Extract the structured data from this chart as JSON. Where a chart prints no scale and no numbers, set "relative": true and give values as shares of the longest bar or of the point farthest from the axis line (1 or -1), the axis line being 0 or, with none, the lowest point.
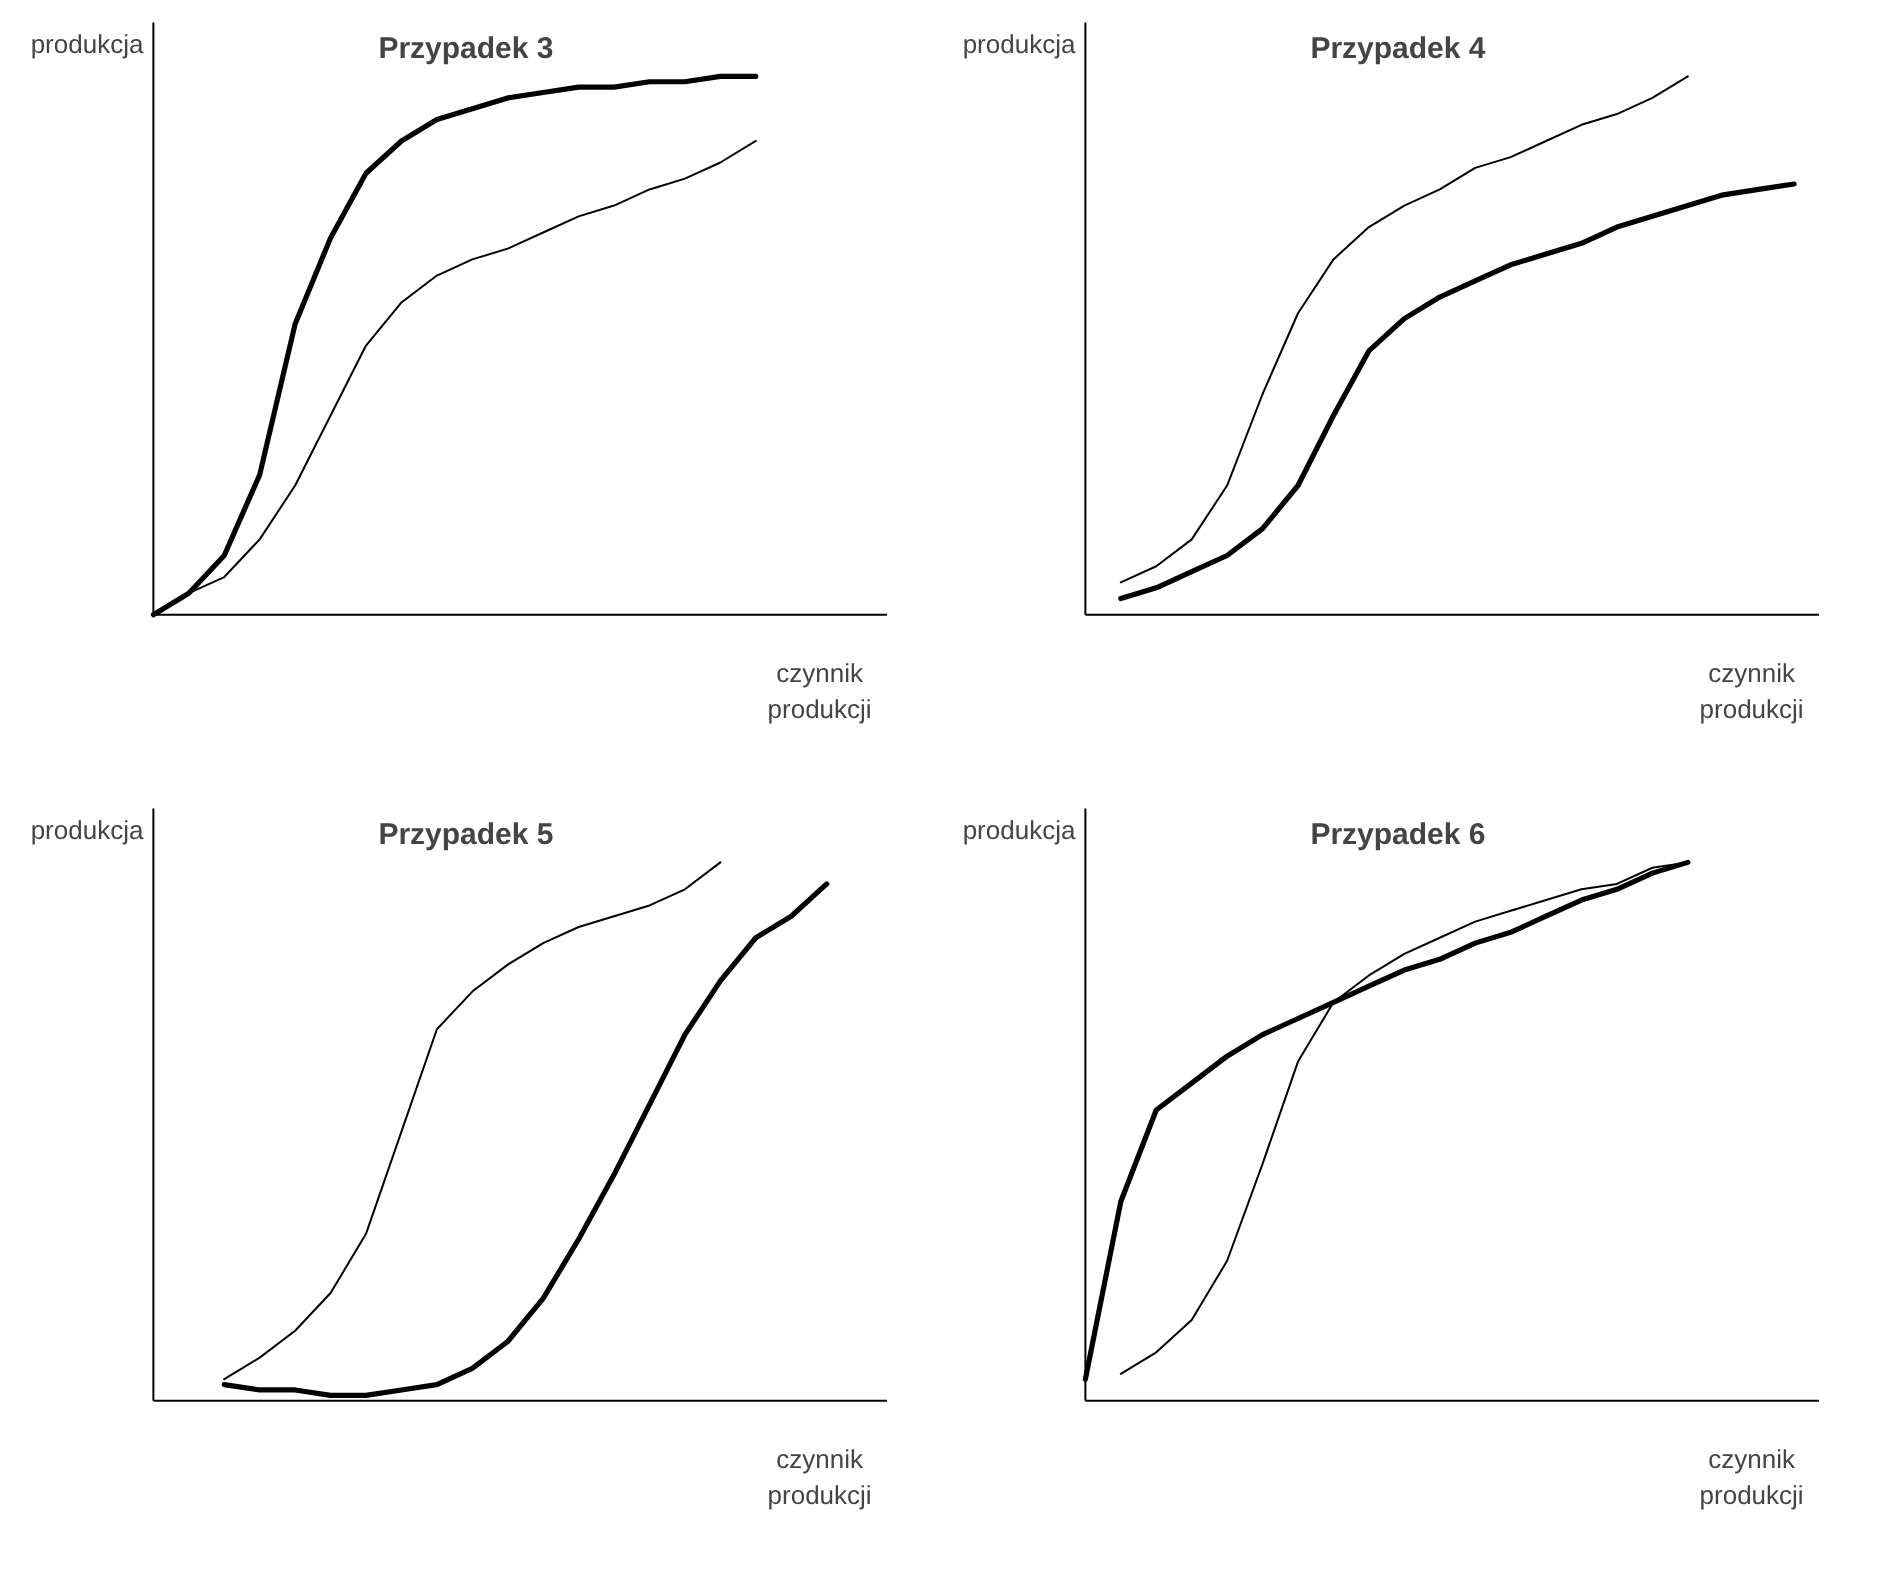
{
  "chart_data": [
    {
      "type": "line",
      "title": "Przypadek 3",
      "xlabel": "czynnik\nprodukcji",
      "ylabel": "produkcja",
      "relative": true,
      "grid": false,
      "categories": [
        null,
        null,
        null,
        null,
        null,
        null,
        null,
        null,
        null,
        null,
        null,
        null,
        null,
        null,
        null,
        null,
        null,
        null,
        null,
        null,
        null
      ],
      "series": [
        {
          "color": "#000000",
          "values": [
            0,
            0.04,
            0.11,
            0.26,
            0.54,
            0.7,
            0.82,
            0.88,
            0.92,
            0.94,
            0.96,
            0.97,
            0.98,
            0.98,
            0.99,
            0.99,
            1.0,
            1.0,
            null,
            null,
            null
          ]
        },
        {
          "color": "#000000",
          "values": [
            0,
            0.04,
            0.07,
            0.14,
            0.24,
            0.37,
            0.5,
            0.58,
            0.63,
            0.66,
            0.68,
            0.71,
            0.74,
            0.76,
            0.79,
            0.81,
            0.84,
            0.88,
            null,
            null,
            null
          ]
        }
      ]
    },
    {
      "type": "line",
      "title": "Przypadek 4",
      "xlabel": "czynnik\nprodukcji",
      "ylabel": "produkcja",
      "relative": true,
      "grid": false,
      "categories": [
        null,
        null,
        null,
        null,
        null,
        null,
        null,
        null,
        null,
        null,
        null,
        null,
        null,
        null,
        null,
        null,
        null,
        null,
        null,
        null,
        null
      ],
      "series": [
        {
          "color": "#000000",
          "values": [
            null,
            0.03,
            0.05,
            0.08,
            0.11,
            0.16,
            0.24,
            0.37,
            0.49,
            0.55,
            0.59,
            0.62,
            0.65,
            0.67,
            0.69,
            0.72,
            0.74,
            0.76,
            0.78,
            0.79,
            0.8
          ]
        },
        {
          "color": "#000000",
          "values": [
            null,
            0.06,
            0.09,
            0.14,
            0.24,
            0.41,
            0.56,
            0.66,
            0.72,
            0.76,
            0.79,
            0.83,
            0.85,
            0.88,
            0.91,
            0.93,
            0.96,
            1.0,
            null,
            null,
            null
          ]
        }
      ]
    },
    {
      "type": "line",
      "title": "Przypadek 5",
      "xlabel": "czynnik\nprodukcji",
      "ylabel": "produkcja",
      "relative": true,
      "grid": false,
      "categories": [
        null,
        null,
        null,
        null,
        null,
        null,
        null,
        null,
        null,
        null,
        null,
        null,
        null,
        null,
        null,
        null,
        null,
        null,
        null,
        null,
        null
      ],
      "series": [
        {
          "color": "#000000",
          "values": [
            null,
            null,
            0.03,
            0.02,
            0.02,
            0.01,
            0.01,
            0.02,
            0.03,
            0.06,
            0.11,
            0.19,
            0.3,
            0.42,
            0.55,
            0.68,
            0.78,
            0.86,
            0.9,
            0.96,
            null
          ]
        },
        {
          "color": "#000000",
          "values": [
            null,
            null,
            0.04,
            0.08,
            0.13,
            0.2,
            0.31,
            0.5,
            0.69,
            0.76,
            0.81,
            0.85,
            0.88,
            0.9,
            0.92,
            0.95,
            1.0,
            null,
            null,
            null,
            null
          ]
        }
      ]
    },
    {
      "type": "line",
      "title": "Przypadek 6",
      "xlabel": "czynnik\nprodukcji",
      "ylabel": "produkcja",
      "relative": true,
      "grid": false,
      "categories": [
        null,
        null,
        null,
        null,
        null,
        null,
        null,
        null,
        null,
        null,
        null,
        null,
        null,
        null,
        null,
        null,
        null,
        null,
        null,
        null,
        null
      ],
      "series": [
        {
          "color": "#000000",
          "values": [
            0.04,
            0.37,
            0.54,
            0.59,
            0.64,
            0.68,
            0.71,
            0.74,
            0.77,
            0.8,
            0.82,
            0.85,
            0.87,
            0.9,
            0.93,
            0.95,
            0.98,
            1.0,
            null,
            null,
            null
          ]
        },
        {
          "color": "#000000",
          "values": [
            null,
            0.05,
            0.09,
            0.15,
            0.26,
            0.44,
            0.63,
            0.74,
            0.79,
            0.83,
            0.86,
            0.89,
            0.91,
            0.93,
            0.95,
            0.96,
            0.99,
            1.0,
            null,
            null,
            null
          ]
        }
      ]
    }
  ]
}
